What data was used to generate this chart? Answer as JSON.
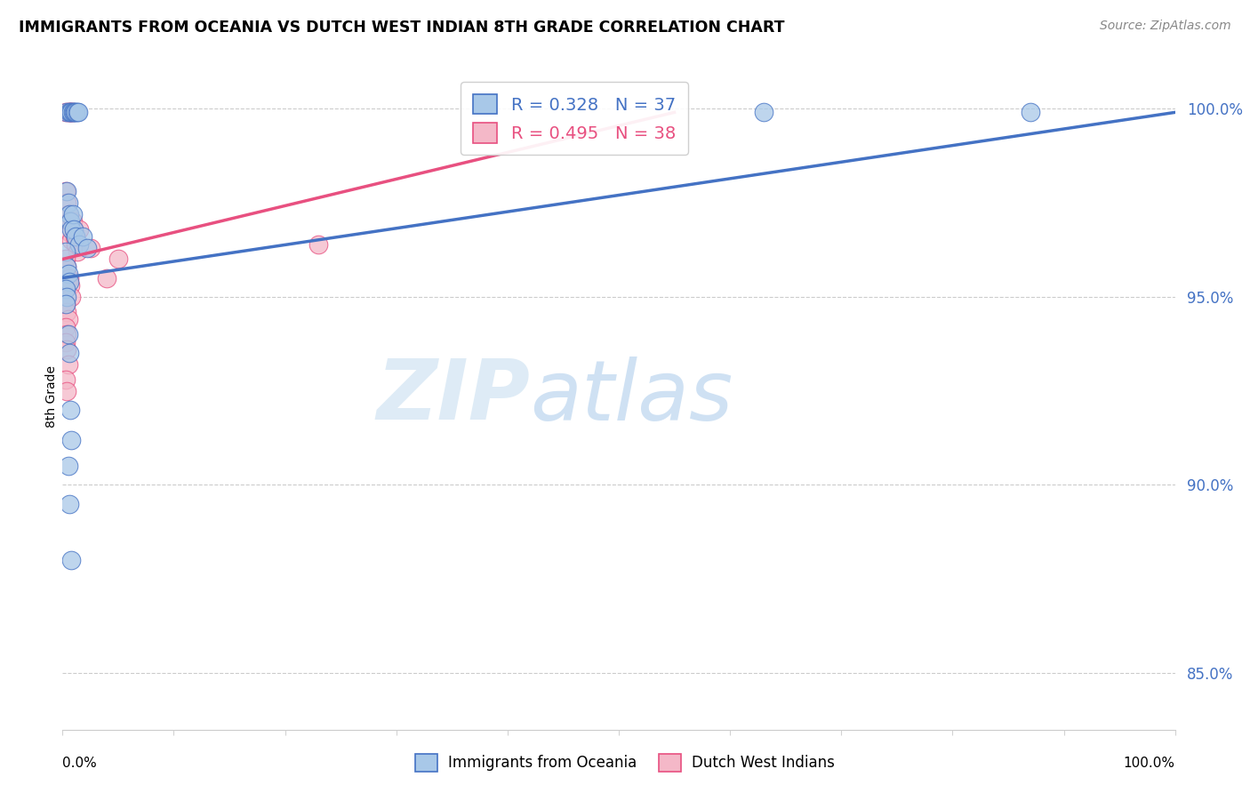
{
  "title": "IMMIGRANTS FROM OCEANIA VS DUTCH WEST INDIAN 8TH GRADE CORRELATION CHART",
  "source": "Source: ZipAtlas.com",
  "ylabel": "8th Grade",
  "ytick_labels": [
    "85.0%",
    "90.0%",
    "95.0%",
    "100.0%"
  ],
  "ytick_values": [
    0.85,
    0.9,
    0.95,
    1.0
  ],
  "xlim": [
    0.0,
    1.0
  ],
  "ylim": [
    0.835,
    1.012
  ],
  "legend_blue_label": "Immigrants from Oceania",
  "legend_pink_label": "Dutch West Indians",
  "R_blue": 0.328,
  "N_blue": 37,
  "R_pink": 0.495,
  "N_pink": 38,
  "blue_color": "#a8c8e8",
  "pink_color": "#f4b8c8",
  "trendline_blue": "#4472c4",
  "trendline_pink": "#e85080",
  "watermark_zip": "ZIP",
  "watermark_atlas": "atlas",
  "blue_scatter": [
    [
      0.004,
      0.999
    ],
    [
      0.006,
      0.999
    ],
    [
      0.007,
      0.999
    ],
    [
      0.008,
      0.999
    ],
    [
      0.009,
      0.999
    ],
    [
      0.01,
      0.999
    ],
    [
      0.011,
      0.999
    ],
    [
      0.012,
      0.999
    ],
    [
      0.013,
      0.999
    ],
    [
      0.014,
      0.999
    ],
    [
      0.004,
      0.978
    ],
    [
      0.005,
      0.975
    ],
    [
      0.006,
      0.972
    ],
    [
      0.007,
      0.97
    ],
    [
      0.008,
      0.968
    ],
    [
      0.009,
      0.972
    ],
    [
      0.01,
      0.968
    ],
    [
      0.012,
      0.966
    ],
    [
      0.015,
      0.964
    ],
    [
      0.018,
      0.966
    ],
    [
      0.022,
      0.963
    ],
    [
      0.003,
      0.962
    ],
    [
      0.004,
      0.958
    ],
    [
      0.005,
      0.956
    ],
    [
      0.006,
      0.954
    ],
    [
      0.003,
      0.952
    ],
    [
      0.004,
      0.95
    ],
    [
      0.003,
      0.948
    ],
    [
      0.005,
      0.94
    ],
    [
      0.006,
      0.935
    ],
    [
      0.007,
      0.92
    ],
    [
      0.008,
      0.912
    ],
    [
      0.005,
      0.905
    ],
    [
      0.006,
      0.895
    ],
    [
      0.008,
      0.88
    ],
    [
      0.63,
      0.999
    ],
    [
      0.87,
      0.999
    ]
  ],
  "pink_scatter": [
    [
      0.003,
      0.999
    ],
    [
      0.005,
      0.999
    ],
    [
      0.006,
      0.999
    ],
    [
      0.007,
      0.999
    ],
    [
      0.008,
      0.999
    ],
    [
      0.009,
      0.999
    ],
    [
      0.003,
      0.978
    ],
    [
      0.004,
      0.975
    ],
    [
      0.005,
      0.972
    ],
    [
      0.006,
      0.97
    ],
    [
      0.007,
      0.967
    ],
    [
      0.008,
      0.965
    ],
    [
      0.009,
      0.97
    ],
    [
      0.01,
      0.968
    ],
    [
      0.011,
      0.966
    ],
    [
      0.012,
      0.964
    ],
    [
      0.013,
      0.962
    ],
    [
      0.015,
      0.968
    ],
    [
      0.003,
      0.96
    ],
    [
      0.004,
      0.958
    ],
    [
      0.005,
      0.955
    ],
    [
      0.006,
      0.955
    ],
    [
      0.007,
      0.953
    ],
    [
      0.008,
      0.95
    ],
    [
      0.003,
      0.948
    ],
    [
      0.004,
      0.946
    ],
    [
      0.005,
      0.944
    ],
    [
      0.003,
      0.942
    ],
    [
      0.004,
      0.94
    ],
    [
      0.003,
      0.938
    ],
    [
      0.004,
      0.936
    ],
    [
      0.005,
      0.932
    ],
    [
      0.003,
      0.928
    ],
    [
      0.004,
      0.925
    ],
    [
      0.025,
      0.963
    ],
    [
      0.04,
      0.955
    ],
    [
      0.05,
      0.96
    ],
    [
      0.23,
      0.964
    ]
  ],
  "trendline_blue_points": [
    [
      0.0,
      0.955
    ],
    [
      1.0,
      0.999
    ]
  ],
  "trendline_pink_points": [
    [
      0.0,
      0.96
    ],
    [
      0.55,
      0.999
    ]
  ]
}
